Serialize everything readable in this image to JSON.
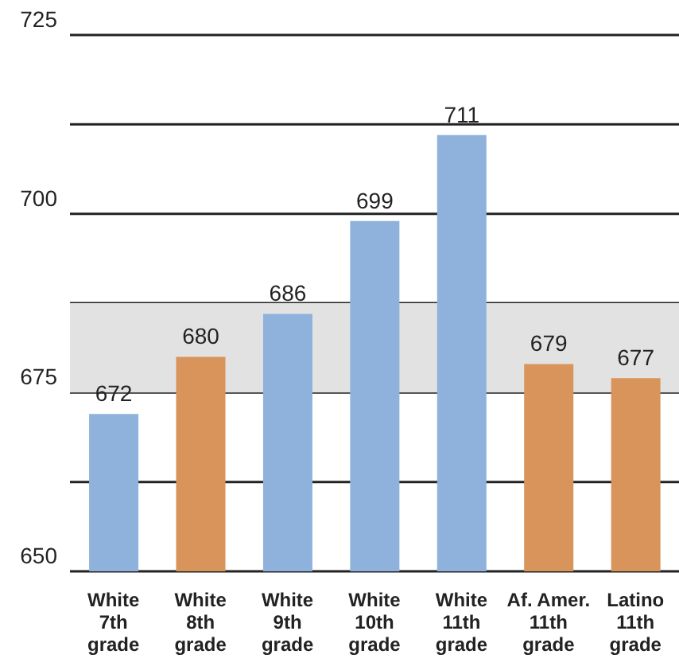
{
  "chart_data": {
    "type": "bar",
    "categories": [
      "White\n7th\ngrade",
      "White\n8th\ngrade",
      "White\n9th\ngrade",
      "White\n10th\ngrade",
      "White\n11th\ngrade",
      "Af. Amer.\n11th\ngrade",
      "Latino\n11th\ngrade"
    ],
    "values": [
      672,
      680,
      686,
      699,
      711,
      679,
      677
    ],
    "colors": [
      "#8fb2dd",
      "#d8945a",
      "#8fb2dd",
      "#8fb2dd",
      "#8fb2dd",
      "#d8945a",
      "#d8945a"
    ],
    "ylim": [
      650,
      725
    ],
    "yticks": [
      650,
      {
        "value": 662.5,
        "label": null
      },
      675,
      {
        "value": 687.5,
        "label": null
      },
      700,
      {
        "value": 712.5,
        "label": null
      },
      725
    ],
    "grid": "y",
    "data_labels": true,
    "bands": [
      {
        "axis": "y",
        "from": 675,
        "to": 687.5,
        "color": "#e2e2e2"
      }
    ]
  }
}
